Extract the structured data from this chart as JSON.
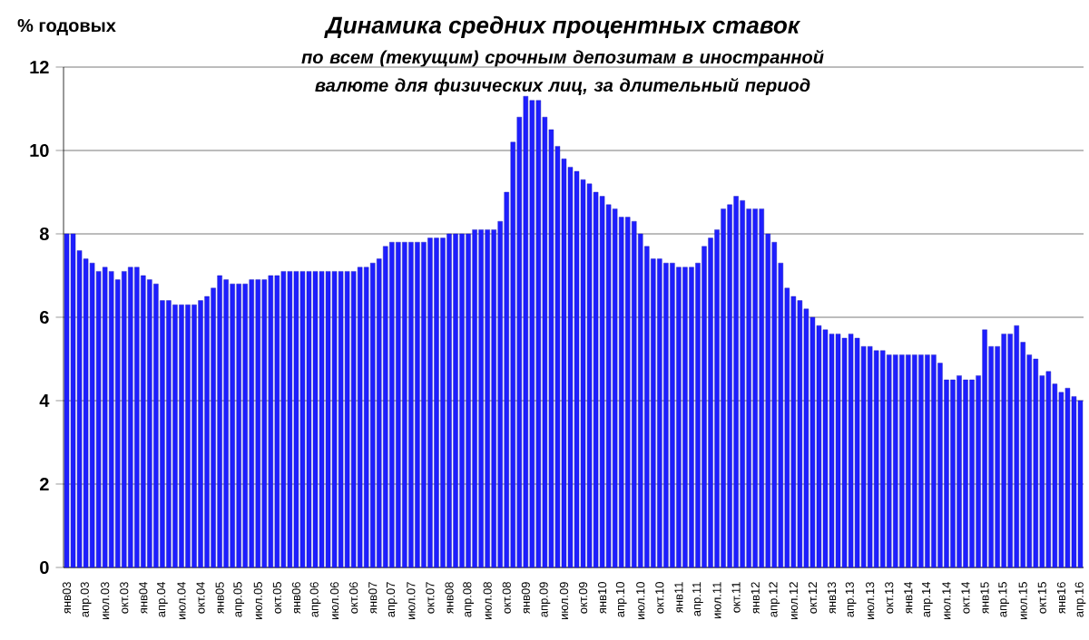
{
  "chart_data": {
    "type": "bar",
    "title": "Динамика средних процентных ставок",
    "subtitle": "по всем (текущим) срочным депозитам в иностранной валюте для физических лиц, за длительный период",
    "ylabel": "% годовых",
    "categories": [
      "янв03",
      null,
      null,
      "апр.03",
      null,
      null,
      "июл.03",
      null,
      null,
      "окт.03",
      null,
      null,
      "янв04",
      null,
      null,
      "апр.04",
      null,
      null,
      "июл.04",
      null,
      null,
      "окт.04",
      null,
      null,
      "янв05",
      null,
      null,
      "апр.05",
      null,
      null,
      "июл.05",
      null,
      null,
      "окт.05",
      null,
      null,
      "янв06",
      null,
      null,
      "апр.06",
      null,
      null,
      "июл.06",
      null,
      null,
      "окт.06",
      null,
      null,
      "янв07",
      null,
      null,
      "апр.07",
      null,
      null,
      "июл.07",
      null,
      null,
      "окт.07",
      null,
      null,
      "янв08",
      null,
      null,
      "апр.08",
      null,
      null,
      "июл.08",
      null,
      null,
      "окт.08",
      null,
      null,
      "янв09",
      null,
      null,
      "апр.09",
      null,
      null,
      "июл.09",
      null,
      null,
      "окт.09",
      null,
      null,
      "янв10",
      null,
      null,
      "апр.10",
      null,
      null,
      "июл.10",
      null,
      null,
      "окт.10",
      null,
      null,
      "янв11",
      null,
      null,
      "апр.11",
      null,
      null,
      "июл.11",
      null,
      null,
      "окт.11",
      null,
      null,
      "янв12",
      null,
      null,
      "апр.12",
      null,
      null,
      "июл.12",
      null,
      null,
      "окт.12",
      null,
      null,
      "янв13",
      null,
      null,
      "апр.13",
      null,
      null,
      "июл.13",
      null,
      null,
      "окт.13",
      null,
      null,
      "янв14",
      null,
      null,
      "апр.14",
      null,
      null,
      "июл.14",
      null,
      null,
      "окт.14",
      null,
      null,
      "янв15",
      null,
      null,
      "апр.15",
      null,
      null,
      "июл.15",
      null,
      null,
      "окт.15",
      null,
      null,
      "янв16",
      null,
      null,
      "апр.16"
    ],
    "values": [
      8.0,
      8.0,
      7.6,
      7.4,
      7.3,
      7.1,
      7.2,
      7.1,
      6.9,
      7.1,
      7.2,
      7.2,
      7.0,
      6.9,
      6.8,
      6.4,
      6.4,
      6.3,
      6.3,
      6.3,
      6.3,
      6.4,
      6.5,
      6.7,
      7.0,
      6.9,
      6.8,
      6.8,
      6.8,
      6.9,
      6.9,
      6.9,
      7.0,
      7.0,
      7.1,
      7.1,
      7.1,
      7.1,
      7.1,
      7.1,
      7.1,
      7.1,
      7.1,
      7.1,
      7.1,
      7.1,
      7.2,
      7.2,
      7.3,
      7.4,
      7.7,
      7.8,
      7.8,
      7.8,
      7.8,
      7.8,
      7.8,
      7.9,
      7.9,
      7.9,
      8.0,
      8.0,
      8.0,
      8.0,
      8.1,
      8.1,
      8.1,
      8.1,
      8.3,
      9.0,
      10.2,
      10.8,
      11.3,
      11.2,
      11.2,
      10.8,
      10.5,
      10.1,
      9.8,
      9.6,
      9.5,
      9.3,
      9.2,
      9.0,
      8.9,
      8.7,
      8.6,
      8.4,
      8.4,
      8.3,
      8.0,
      7.7,
      7.4,
      7.4,
      7.3,
      7.3,
      7.2,
      7.2,
      7.2,
      7.3,
      7.7,
      7.9,
      8.1,
      8.6,
      8.7,
      8.9,
      8.8,
      8.6,
      8.6,
      8.6,
      8.0,
      7.8,
      7.3,
      6.7,
      6.5,
      6.4,
      6.2,
      6.0,
      5.8,
      5.7,
      5.6,
      5.6,
      5.5,
      5.6,
      5.5,
      5.3,
      5.3,
      5.2,
      5.2,
      5.1,
      5.1,
      5.1,
      5.1,
      5.1,
      5.1,
      5.1,
      5.1,
      4.9,
      4.5,
      4.5,
      4.6,
      4.5,
      4.5,
      4.6,
      5.7,
      5.3,
      5.3,
      5.6,
      5.6,
      5.8,
      5.4,
      5.1,
      5.0,
      4.6,
      4.7,
      4.4,
      4.2,
      4.3,
      4.1,
      4.0
    ],
    "color": "#1e1eff",
    "ylim": [
      0,
      12
    ],
    "yticks": [
      0,
      2,
      4,
      6,
      8,
      10,
      12
    ],
    "grid": "y"
  }
}
